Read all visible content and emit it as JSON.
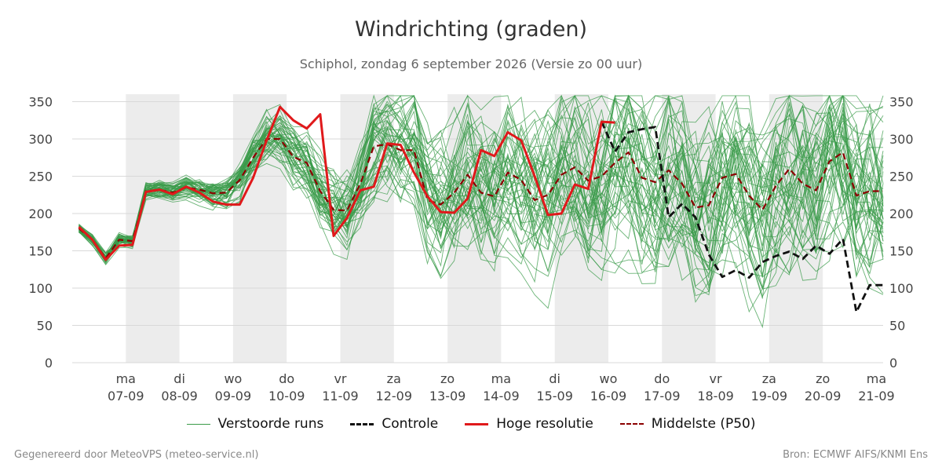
{
  "chart_data": {
    "type": "line",
    "title": "Windrichting (graden)",
    "subtitle": "Schiphol, zondag  6 september 2026 (Versie zo 00 uur)",
    "ylim": [
      0,
      360
    ],
    "yticks": [
      0,
      50,
      100,
      150,
      200,
      250,
      300,
      350
    ],
    "x_range": [
      "2026-09-06 00:00",
      "2026-09-21 03:00"
    ],
    "day_ticks": [
      {
        "day": "ma",
        "date": "07-09"
      },
      {
        "day": "di",
        "date": "08-09"
      },
      {
        "day": "wo",
        "date": "09-09"
      },
      {
        "day": "do",
        "date": "10-09"
      },
      {
        "day": "vr",
        "date": "11-09"
      },
      {
        "day": "za",
        "date": "12-09"
      },
      {
        "day": "zo",
        "date": "13-09"
      },
      {
        "day": "ma",
        "date": "14-09"
      },
      {
        "day": "di",
        "date": "15-09"
      },
      {
        "day": "wo",
        "date": "16-09"
      },
      {
        "day": "do",
        "date": "17-09"
      },
      {
        "day": "vr",
        "date": "18-09"
      },
      {
        "day": "za",
        "date": "19-09"
      },
      {
        "day": "zo",
        "date": "20-09"
      },
      {
        "day": "ma",
        "date": "21-09"
      }
    ],
    "shaded_days": [
      "07-09",
      "09-09",
      "11-09",
      "13-09",
      "15-09",
      "17-09",
      "19-09"
    ],
    "grid": true,
    "legend_position": "bottom-center",
    "series": [
      {
        "name": "Hoge resolutie",
        "color": "#e0191b",
        "style": "solid",
        "x": [
          "2026-09-06 03:00",
          "2026-09-06 09:00",
          "2026-09-06 15:00",
          "2026-09-06 21:00",
          "2026-09-07 03:00",
          "2026-09-07 09:00",
          "2026-09-07 15:00",
          "2026-09-07 21:00",
          "2026-09-08 03:00",
          "2026-09-08 09:00",
          "2026-09-08 15:00",
          "2026-09-08 21:00",
          "2026-09-09 03:00",
          "2026-09-09 09:00",
          "2026-09-09 15:00",
          "2026-09-09 21:00",
          "2026-09-10 03:00",
          "2026-09-10 09:00",
          "2026-09-10 15:00",
          "2026-09-10 21:00",
          "2026-09-11 03:00",
          "2026-09-11 09:00",
          "2026-09-11 15:00",
          "2026-09-11 21:00",
          "2026-09-12 03:00",
          "2026-09-12 09:00",
          "2026-09-12 15:00",
          "2026-09-12 21:00",
          "2026-09-13 03:00",
          "2026-09-13 09:00",
          "2026-09-13 15:00",
          "2026-09-13 21:00",
          "2026-09-14 03:00",
          "2026-09-14 09:00",
          "2026-09-14 15:00",
          "2026-09-14 21:00",
          "2026-09-15 03:00",
          "2026-09-15 09:00",
          "2026-09-15 15:00",
          "2026-09-15 21:00",
          "2026-09-16 03:00"
        ],
        "values": [
          182,
          165,
          138,
          157,
          158,
          229,
          232,
          226,
          236,
          228,
          216,
          212,
          212,
          248,
          298,
          343,
          325,
          314,
          333,
          170,
          194,
          231,
          236,
          294,
          292,
          255,
          223,
          202,
          201,
          220,
          285,
          277,
          309,
          298,
          250,
          198,
          200,
          239,
          233,
          323,
          322
        ]
      },
      {
        "name": "Middelste (P50)",
        "color": "#8b0000",
        "style": "dashed",
        "x": [
          "2026-09-06 03:00",
          "2026-09-06 09:00",
          "2026-09-06 15:00",
          "2026-09-06 21:00",
          "2026-09-07 03:00",
          "2026-09-07 09:00",
          "2026-09-07 15:00",
          "2026-09-07 21:00",
          "2026-09-08 03:00",
          "2026-09-08 09:00",
          "2026-09-08 15:00",
          "2026-09-08 21:00",
          "2026-09-09 03:00",
          "2026-09-09 09:00",
          "2026-09-09 15:00",
          "2026-09-09 21:00",
          "2026-09-10 03:00",
          "2026-09-10 09:00",
          "2026-09-10 15:00",
          "2026-09-10 21:00",
          "2026-09-11 03:00",
          "2026-09-11 09:00",
          "2026-09-11 15:00",
          "2026-09-11 21:00",
          "2026-09-12 03:00",
          "2026-09-12 09:00",
          "2026-09-12 15:00",
          "2026-09-12 21:00",
          "2026-09-13 03:00",
          "2026-09-13 09:00",
          "2026-09-13 15:00",
          "2026-09-13 21:00",
          "2026-09-14 03:00",
          "2026-09-14 09:00",
          "2026-09-14 15:00",
          "2026-09-14 21:00",
          "2026-09-15 03:00",
          "2026-09-15 09:00",
          "2026-09-15 15:00",
          "2026-09-15 21:00",
          "2026-09-16 03:00",
          "2026-09-16 09:00",
          "2026-09-16 15:00",
          "2026-09-16 21:00",
          "2026-09-17 03:00",
          "2026-09-17 09:00",
          "2026-09-17 15:00",
          "2026-09-17 21:00",
          "2026-09-18 03:00",
          "2026-09-18 09:00",
          "2026-09-18 15:00",
          "2026-09-18 21:00",
          "2026-09-19 03:00",
          "2026-09-19 09:00",
          "2026-09-19 15:00",
          "2026-09-19 21:00",
          "2026-09-20 03:00",
          "2026-09-20 09:00",
          "2026-09-20 15:00",
          "2026-09-20 21:00",
          "2026-09-21 03:00"
        ],
        "values": [
          180,
          165,
          140,
          165,
          163,
          230,
          232,
          228,
          235,
          232,
          227,
          228,
          245,
          275,
          300,
          300,
          276,
          268,
          230,
          205,
          204,
          240,
          290,
          293,
          285,
          285,
          218,
          212,
          228,
          252,
          228,
          223,
          255,
          245,
          218,
          225,
          252,
          262,
          244,
          250,
          268,
          282,
          248,
          242,
          258,
          240,
          208,
          211,
          248,
          253,
          224,
          205,
          237,
          260,
          240,
          231,
          270,
          282,
          224,
          230,
          230
        ]
      },
      {
        "name": "Controle",
        "color": "#111111",
        "style": "dashed",
        "x": [
          "2026-09-15 21:00",
          "2026-09-16 03:00",
          "2026-09-16 09:00",
          "2026-09-16 15:00",
          "2026-09-16 21:00",
          "2026-09-17 03:00",
          "2026-09-17 09:00",
          "2026-09-17 15:00",
          "2026-09-17 21:00",
          "2026-09-18 03:00",
          "2026-09-18 09:00",
          "2026-09-18 15:00",
          "2026-09-18 21:00",
          "2026-09-19 03:00",
          "2026-09-19 09:00",
          "2026-09-19 15:00",
          "2026-09-19 21:00",
          "2026-09-20 03:00",
          "2026-09-20 09:00",
          "2026-09-20 15:00",
          "2026-09-20 21:00",
          "2026-09-21 03:00"
        ],
        "values": [
          323,
          283,
          309,
          313,
          316,
          195,
          213,
          195,
          145,
          115,
          124,
          114,
          135,
          143,
          149,
          139,
          157,
          146,
          166,
          68,
          104,
          104
        ]
      },
      {
        "name": "Verstoorde runs",
        "color": "#3a9b49",
        "style": "solid",
        "members": 50,
        "x": [
          "2026-09-06 03:00",
          "2026-09-06 09:00",
          "2026-09-06 15:00",
          "2026-09-06 21:00",
          "2026-09-07 03:00",
          "2026-09-07 09:00",
          "2026-09-07 15:00",
          "2026-09-07 21:00",
          "2026-09-08 03:00",
          "2026-09-08 09:00",
          "2026-09-08 15:00",
          "2026-09-08 21:00",
          "2026-09-09 03:00",
          "2026-09-09 09:00",
          "2026-09-09 15:00",
          "2026-09-09 21:00",
          "2026-09-10 03:00",
          "2026-09-10 09:00",
          "2026-09-10 15:00",
          "2026-09-10 21:00",
          "2026-09-11 03:00",
          "2026-09-11 09:00",
          "2026-09-11 15:00",
          "2026-09-11 21:00",
          "2026-09-12 03:00",
          "2026-09-12 09:00",
          "2026-09-12 15:00",
          "2026-09-12 21:00",
          "2026-09-13 03:00",
          "2026-09-13 09:00",
          "2026-09-13 15:00",
          "2026-09-13 21:00",
          "2026-09-14 03:00",
          "2026-09-14 09:00",
          "2026-09-14 15:00",
          "2026-09-14 21:00",
          "2026-09-15 03:00",
          "2026-09-15 09:00",
          "2026-09-15 15:00",
          "2026-09-15 21:00",
          "2026-09-16 03:00",
          "2026-09-16 09:00",
          "2026-09-16 15:00",
          "2026-09-16 21:00",
          "2026-09-17 03:00",
          "2026-09-17 09:00",
          "2026-09-17 15:00",
          "2026-09-17 21:00",
          "2026-09-18 03:00",
          "2026-09-18 09:00",
          "2026-09-18 15:00",
          "2026-09-18 21:00",
          "2026-09-19 03:00",
          "2026-09-19 09:00",
          "2026-09-19 15:00",
          "2026-09-19 21:00",
          "2026-09-20 03:00",
          "2026-09-20 09:00",
          "2026-09-20 15:00",
          "2026-09-20 21:00",
          "2026-09-21 03:00"
        ],
        "spread": [
          8,
          9,
          9,
          10,
          11,
          13,
          14,
          15,
          17,
          19,
          22,
          26,
          30,
          34,
          38,
          42,
          46,
          50,
          54,
          58,
          62,
          68,
          74,
          80,
          86,
          92,
          98,
          104,
          108,
          112,
          116,
          120,
          124,
          128,
          130,
          132,
          134,
          136,
          138,
          140,
          142,
          144,
          146,
          148,
          150,
          150,
          150,
          150,
          150,
          150,
          150,
          150,
          150,
          150,
          150,
          150,
          150,
          150,
          150,
          150,
          150
        ]
      }
    ]
  },
  "legend": [
    {
      "label": "Verstoorde runs",
      "color": "#3a9b49",
      "style": "thin"
    },
    {
      "label": "Controle",
      "color": "#111111",
      "style": "dashed"
    },
    {
      "label": "Hoge resolutie",
      "color": "#e0191b",
      "style": "solid"
    },
    {
      "label": "Middelste (P50)",
      "color": "#8b0000",
      "style": "dashed"
    }
  ],
  "footer": {
    "left": "Gegenereerd door MeteoVPS (meteo-service.nl)",
    "right": "Bron: ECMWF AIFS/KNMI Ens"
  }
}
